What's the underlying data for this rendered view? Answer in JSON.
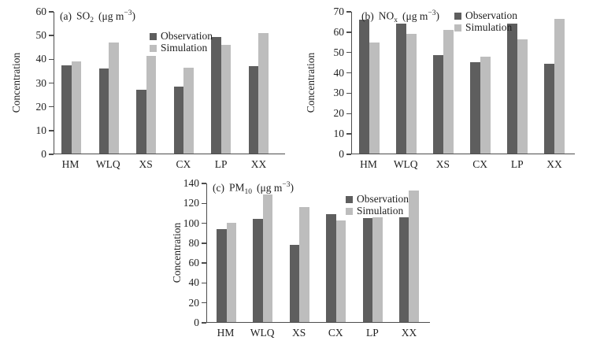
{
  "figure": {
    "background": "#ffffff",
    "colors": {
      "observation": "#5e5e5e",
      "simulation": "#bdbdbd",
      "axis": "#4d4d4d",
      "text": "#1f1f1f"
    }
  },
  "chart_data": [
    {
      "type": "bar",
      "panel": "(a)",
      "species": "SO",
      "species_sub": "2",
      "units_open": "(μg m",
      "units_sup": "−3",
      "units_close": ")",
      "ylabel": "Concentration",
      "ylim": [
        0,
        60
      ],
      "ytick_step": 10,
      "categories": [
        "HM",
        "WLQ",
        "XS",
        "CX",
        "LP",
        "XX"
      ],
      "series": [
        {
          "name": "Observation",
          "values": [
            37.5,
            36,
            27,
            28.5,
            49.5,
            37
          ]
        },
        {
          "name": "Simulation",
          "values": [
            39,
            47,
            41.5,
            36.5,
            46,
            51
          ]
        }
      ],
      "legend_position": "inside top-right",
      "grid": false
    },
    {
      "type": "bar",
      "panel": "(b)",
      "species": "NO",
      "species_sub": "x",
      "units_open": "(μg m",
      "units_sup": "−3",
      "units_close": ")",
      "ylabel": "Concentration",
      "ylim": [
        0,
        70
      ],
      "ytick_step": 10,
      "categories": [
        "HM",
        "WLQ",
        "XS",
        "CX",
        "LP",
        "XX"
      ],
      "series": [
        {
          "name": "Observation",
          "values": [
            66,
            64,
            48.5,
            45,
            64,
            44.5
          ]
        },
        {
          "name": "Simulation",
          "values": [
            55,
            59,
            61,
            48,
            56.5,
            66.5
          ]
        }
      ],
      "legend_position": "inside top-right",
      "grid": false
    },
    {
      "type": "bar",
      "panel": "(c)",
      "species": "PM",
      "species_sub": "10",
      "units_open": "(μg m",
      "units_sup": "−3",
      "units_close": ")",
      "ylabel": "Concentration",
      "ylim": [
        0,
        140
      ],
      "ytick_step": 20,
      "categories": [
        "HM",
        "WLQ",
        "XS",
        "CX",
        "LP",
        "XX"
      ],
      "series": [
        {
          "name": "Observation",
          "values": [
            94,
            104,
            78,
            109,
            105,
            106
          ]
        },
        {
          "name": "Simulation",
          "values": [
            100.5,
            129,
            116,
            103,
            106,
            133
          ]
        }
      ],
      "legend_position": "inside top-right",
      "grid": false
    }
  ]
}
